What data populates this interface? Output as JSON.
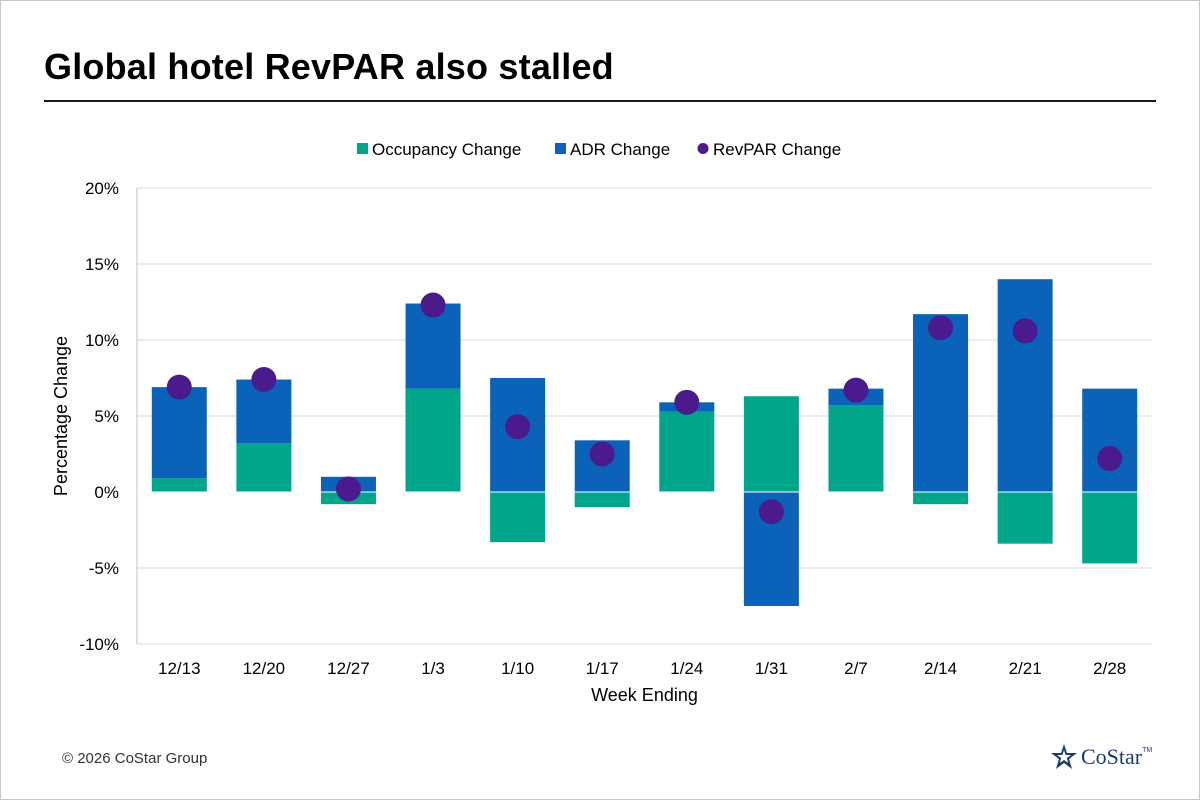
{
  "title": "Global hotel RevPAR also stalled",
  "footer": {
    "copyright": "© 2026 CoStar Group",
    "logo_text": "CoStar",
    "logo_tm": "TM"
  },
  "chart_data": {
    "type": "bar",
    "stacked": true,
    "xlabel": "Week Ending",
    "ylabel": "Percentage Change",
    "ylim": [
      -10,
      20
    ],
    "yticks": [
      -10,
      -5,
      0,
      5,
      10,
      15,
      20
    ],
    "ytick_labels": [
      "-10%",
      "-5%",
      "0%",
      "5%",
      "10%",
      "15%",
      "20%"
    ],
    "grid": true,
    "legend_position": "top-center",
    "categories": [
      "12/13",
      "12/20",
      "12/27",
      "1/3",
      "1/10",
      "1/17",
      "1/24",
      "1/31",
      "2/7",
      "2/14",
      "2/21",
      "2/28"
    ],
    "series": [
      {
        "name": "Occupancy Change",
        "kind": "bar",
        "color": "#00a68a",
        "values": [
          0.9,
          3.2,
          -0.8,
          6.8,
          -3.3,
          -1.0,
          5.3,
          6.3,
          5.7,
          -0.8,
          -3.4,
          -4.7
        ]
      },
      {
        "name": "ADR Change",
        "kind": "bar",
        "color": "#0a63b8",
        "values": [
          6.0,
          4.2,
          1.0,
          5.6,
          7.5,
          3.4,
          0.6,
          -7.5,
          1.1,
          11.7,
          14.0,
          6.8
        ]
      },
      {
        "name": "RevPAR Change",
        "kind": "dot",
        "color": "#4b1a8c",
        "values": [
          6.9,
          7.4,
          0.2,
          12.3,
          4.3,
          2.5,
          5.9,
          -1.3,
          6.7,
          10.8,
          10.6,
          2.2
        ]
      }
    ]
  }
}
